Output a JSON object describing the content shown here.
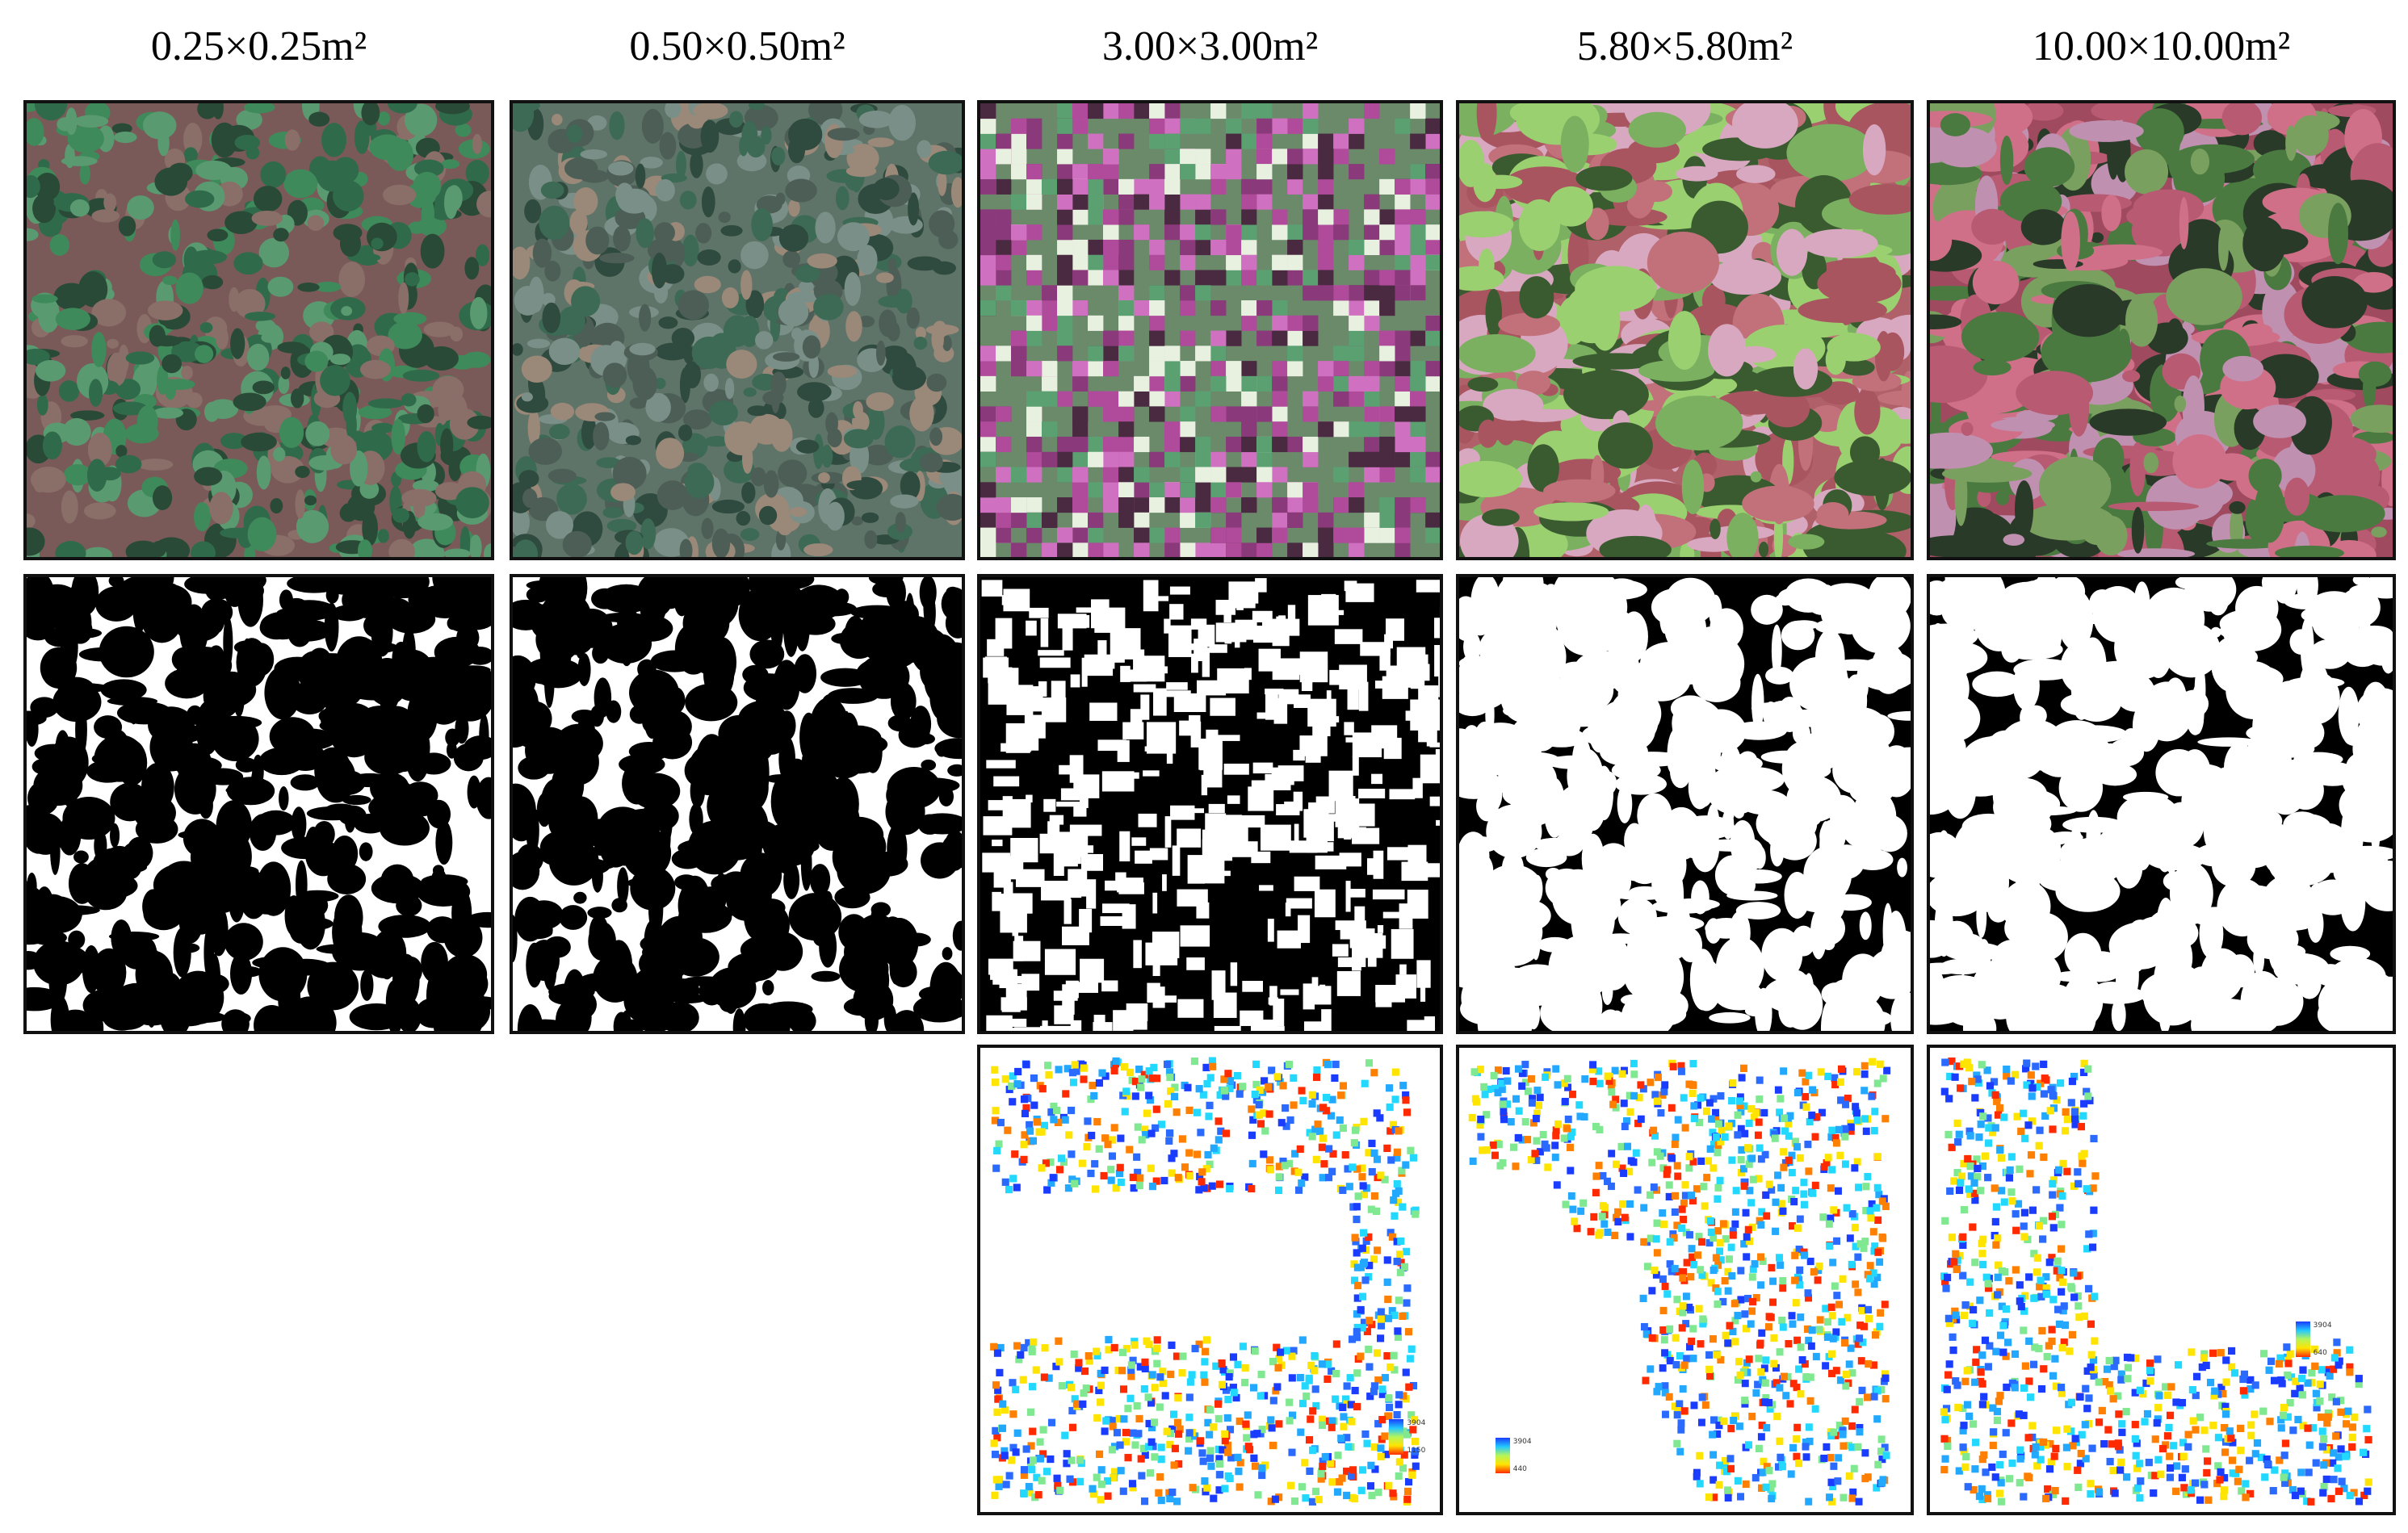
{
  "columns": [
    {
      "header": "0.25×0.25m²"
    },
    {
      "header": "0.50×0.50m²"
    },
    {
      "header": "3.00×3.00m²",
      "legend": [
        "3904",
        "1150"
      ]
    },
    {
      "header": "5.80×5.80m²",
      "legend": [
        "3904",
        "440"
      ]
    },
    {
      "header": "10.00×10.00m²",
      "legend": [
        "3904",
        "640"
      ]
    }
  ]
}
